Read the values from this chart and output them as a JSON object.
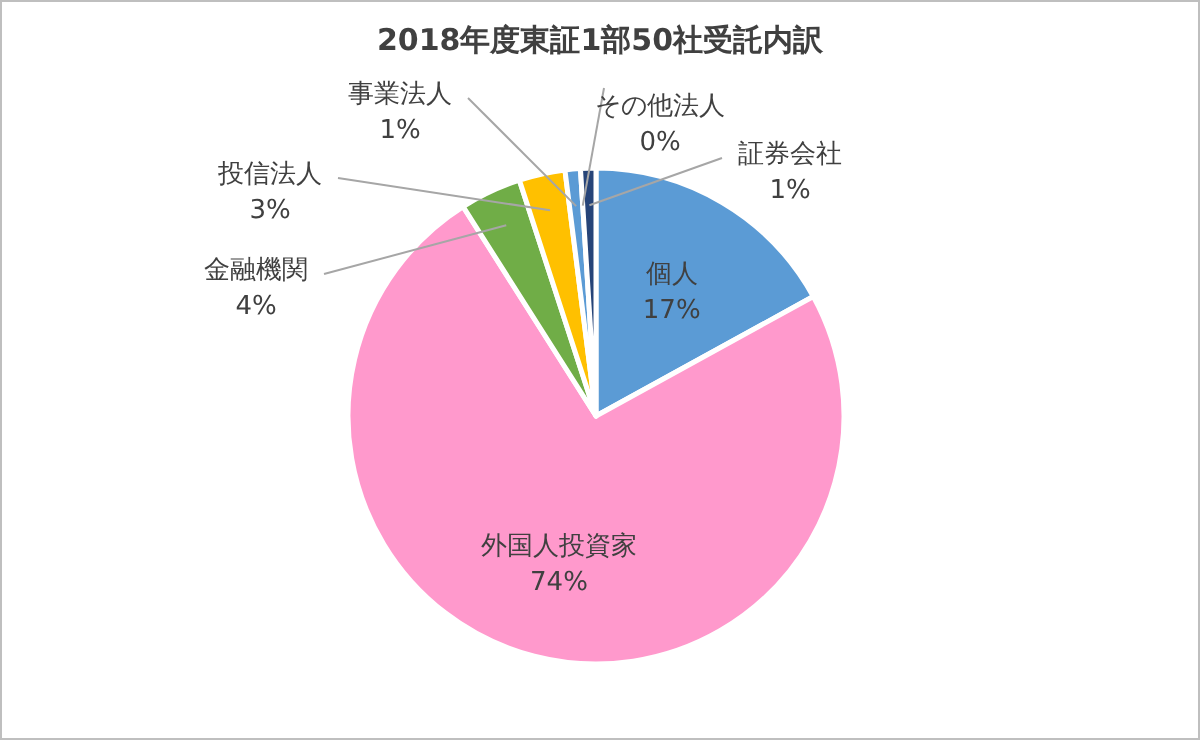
{
  "chart_data": {
    "type": "pie",
    "title": "2018年度東証1部50社受託内訳",
    "categories": [
      "個人",
      "外国人投資家",
      "金融機関",
      "投信法人",
      "事業法人",
      "その他法人",
      "証券会社"
    ],
    "values": [
      17,
      74,
      4,
      3,
      1,
      0,
      1
    ],
    "colors": [
      "#5b9bd5",
      "#ff99cc",
      "#70ad47",
      "#ffc000",
      "#5b9bd5",
      null,
      "#264478"
    ],
    "value_labels": [
      "17%",
      "74%",
      "4%",
      "3%",
      "1%",
      "0%",
      "1%"
    ],
    "legend": false
  }
}
